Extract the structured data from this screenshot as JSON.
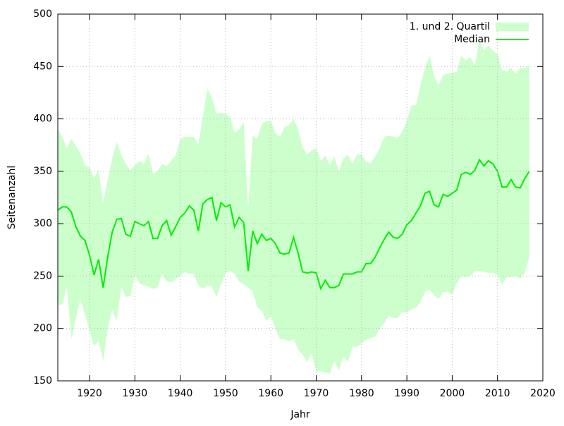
{
  "chart_data": {
    "type": "line",
    "x_label": "Jahr",
    "y_label": "Seitenanzahl",
    "x": [
      1913,
      1914,
      1915,
      1916,
      1917,
      1918,
      1919,
      1920,
      1921,
      1922,
      1923,
      1924,
      1925,
      1926,
      1927,
      1928,
      1929,
      1930,
      1931,
      1932,
      1933,
      1934,
      1935,
      1936,
      1937,
      1938,
      1939,
      1940,
      1941,
      1942,
      1943,
      1944,
      1945,
      1946,
      1947,
      1948,
      1949,
      1950,
      1951,
      1952,
      1953,
      1954,
      1955,
      1956,
      1957,
      1958,
      1959,
      1960,
      1961,
      1962,
      1963,
      1964,
      1965,
      1966,
      1967,
      1968,
      1969,
      1970,
      1971,
      1972,
      1973,
      1974,
      1975,
      1976,
      1977,
      1978,
      1979,
      1980,
      1981,
      1982,
      1983,
      1984,
      1985,
      1986,
      1987,
      1988,
      1989,
      1990,
      1991,
      1992,
      1993,
      1994,
      1995,
      1996,
      1997,
      1998,
      1999,
      2000,
      2001,
      2002,
      2003,
      2004,
      2005,
      2006,
      2007,
      2008,
      2009,
      2010,
      2011,
      2012,
      2013,
      2014,
      2015,
      2016,
      2017
    ],
    "xlim": [
      1913,
      2020
    ],
    "xticks": [
      1920,
      1930,
      1940,
      1950,
      1960,
      1970,
      1980,
      1990,
      2000,
      2010,
      2020
    ],
    "ylim": [
      150,
      500
    ],
    "yticks": [
      150,
      200,
      250,
      300,
      350,
      400,
      450,
      500
    ],
    "grid": true,
    "legend": "top-right",
    "series": [
      {
        "name": "1. und 2. Quartil",
        "style": "band",
        "color": "#ccffcc",
        "low": [
          222,
          223,
          240,
          190,
          210,
          228,
          213,
          198,
          183,
          188,
          169,
          200,
          218,
          207,
          240,
          230,
          231,
          251,
          243,
          241,
          240,
          238,
          239,
          252,
          245,
          244,
          247,
          250,
          254,
          252,
          252,
          241,
          238,
          241,
          240,
          230,
          242,
          253,
          255,
          252,
          245,
          242,
          239,
          235,
          220,
          217,
          207,
          212,
          200,
          190,
          190,
          188,
          190,
          180,
          175,
          168,
          176,
          159,
          159,
          158,
          157,
          169,
          160,
          173,
          168,
          183,
          182,
          186,
          189,
          191,
          192,
          200,
          205,
          212,
          210,
          210,
          216,
          215,
          218,
          220,
          225,
          235,
          237,
          232,
          228,
          235,
          235,
          232,
          243,
          250,
          249,
          250,
          255,
          255,
          254,
          253,
          253,
          251,
          242,
          249,
          249,
          250,
          248,
          253,
          268
        ],
        "high": [
          390,
          383,
          372,
          381,
          374,
          367,
          356,
          354,
          343,
          352,
          320,
          342,
          362,
          378,
          366,
          357,
          351,
          356,
          360,
          357,
          367,
          348,
          350,
          357,
          355,
          360,
          365,
          380,
          383,
          383,
          383,
          375,
          403,
          429,
          420,
          405,
          406,
          405,
          402,
          387,
          390,
          397,
          315,
          384,
          381,
          395,
          398,
          398,
          386,
          383,
          392,
          394,
          400,
          390,
          373,
          366,
          370,
          372,
          360,
          365,
          356,
          364,
          350,
          362,
          366,
          357,
          366,
          366,
          359,
          358,
          364,
          372,
          383,
          384,
          383,
          382,
          388,
          398,
          413,
          413,
          432,
          449,
          460,
          441,
          432,
          442,
          443,
          444,
          445,
          460,
          456,
          459,
          451,
          475,
          465,
          470,
          465,
          462,
          447,
          445,
          449,
          443,
          449,
          448,
          451
        ]
      },
      {
        "name": "Median",
        "style": "line",
        "color": "#00ee00",
        "values": [
          313,
          316,
          316,
          311,
          297,
          288,
          284,
          270,
          251,
          266,
          239,
          268,
          292,
          304,
          305,
          290,
          288,
          302,
          300,
          298,
          302,
          286,
          286,
          298,
          303,
          289,
          297,
          306,
          310,
          317,
          313,
          293,
          319,
          323,
          325,
          303,
          320,
          316,
          318,
          297,
          306,
          301,
          255,
          293,
          281,
          290,
          284,
          286,
          281,
          272,
          271,
          272,
          287,
          272,
          254,
          253,
          254,
          253,
          238,
          246,
          239,
          239,
          241,
          252,
          252,
          252,
          254,
          254,
          262,
          262,
          268,
          277,
          285,
          292,
          287,
          286,
          290,
          299,
          303,
          310,
          317,
          329,
          331,
          318,
          316,
          328,
          326,
          329,
          332,
          347,
          349,
          347,
          351,
          361,
          355,
          360,
          357,
          350,
          335,
          335,
          342,
          335,
          334,
          343,
          350
        ]
      }
    ]
  }
}
